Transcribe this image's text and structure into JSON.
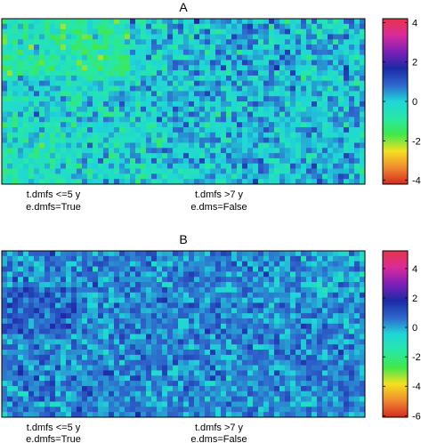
{
  "chart_data": [
    {
      "type": "heatmap",
      "title": "A",
      "group_labels": [
        [
          "t.dmfs <=5 y",
          "e.dmfs=True"
        ],
        [
          "t.dmfs >7 y",
          "e.dms=False"
        ]
      ],
      "colorbar": {
        "min": -4.2,
        "max": 4.2,
        "ticks": [
          4,
          2,
          0,
          -2,
          -4
        ]
      },
      "grid": false,
      "legend_position": "right"
    },
    {
      "type": "heatmap",
      "title": "B",
      "group_labels": [
        [
          "t.dmfs <=5 y",
          "e.dmfs=True"
        ],
        [
          "t.dmfs >7 y",
          "e.dms=False"
        ]
      ],
      "colorbar": {
        "min": -6.1,
        "max": 5.2,
        "ticks": [
          4,
          2,
          0,
          -2,
          -4,
          -6
        ]
      },
      "grid": false,
      "legend_position": "right"
    }
  ],
  "colormap": [
    "#d42a20",
    "#f08a30",
    "#f5e020",
    "#3fe84a",
    "#27e8a6",
    "#1fd6d8",
    "#2e66cc",
    "#1b2aa6",
    "#7d1fb8",
    "#d92b9b",
    "#e8344a"
  ]
}
